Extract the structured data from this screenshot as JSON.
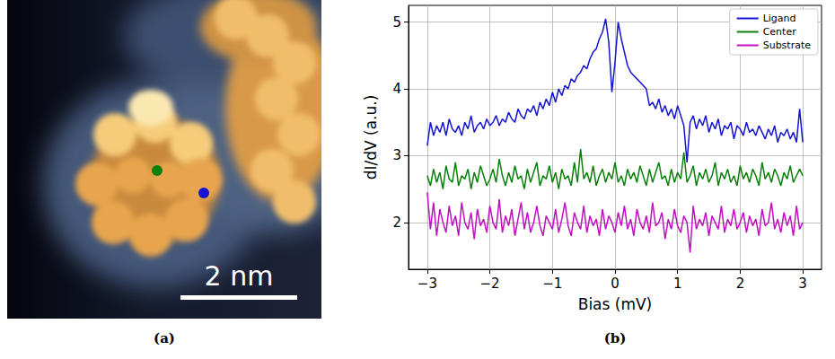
{
  "image_panel": {
    "caption": "(a)",
    "scale_bar": "2 nm"
  },
  "chart_data": {
    "type": "line",
    "caption": "(b)",
    "x_label": "Bias (mV)",
    "y_label": "dI/dV (a.u.)",
    "x": [
      -3,
      -2.95,
      -2.9,
      -2.85,
      -2.8,
      -2.75,
      -2.7,
      -2.65,
      -2.6,
      -2.55,
      -2.5,
      -2.45,
      -2.4,
      -2.35,
      -2.3,
      -2.25,
      -2.2,
      -2.15,
      -2.1,
      -2.05,
      -2,
      -1.95,
      -1.9,
      -1.85,
      -1.8,
      -1.75,
      -1.7,
      -1.65,
      -1.6,
      -1.55,
      -1.5,
      -1.45,
      -1.4,
      -1.35,
      -1.3,
      -1.25,
      -1.2,
      -1.15,
      -1.1,
      -1.05,
      -1,
      -0.95,
      -0.9,
      -0.85,
      -0.8,
      -0.75,
      -0.7,
      -0.65,
      -0.6,
      -0.55,
      -0.5,
      -0.45,
      -0.4,
      -0.35,
      -0.3,
      -0.25,
      -0.2,
      -0.15,
      -0.1,
      -0.05,
      0,
      0.05,
      0.1,
      0.15,
      0.2,
      0.25,
      0.3,
      0.35,
      0.4,
      0.45,
      0.5,
      0.55,
      0.6,
      0.65,
      0.7,
      0.75,
      0.8,
      0.85,
      0.9,
      0.95,
      1,
      1.05,
      1.1,
      1.15,
      1.2,
      1.25,
      1.3,
      1.35,
      1.4,
      1.45,
      1.5,
      1.55,
      1.6,
      1.65,
      1.7,
      1.75,
      1.8,
      1.85,
      1.9,
      1.95,
      2,
      2.05,
      2.1,
      2.15,
      2.2,
      2.25,
      2.3,
      2.35,
      2.4,
      2.45,
      2.5,
      2.55,
      2.6,
      2.65,
      2.7,
      2.75,
      2.8,
      2.85,
      2.9,
      2.95,
      3
    ],
    "series": [
      {
        "name": "Ligand",
        "color": "#1414d2",
        "values": [
          3.15,
          3.5,
          3.3,
          3.45,
          3.35,
          3.5,
          3.3,
          3.55,
          3.4,
          3.35,
          3.45,
          3.3,
          3.5,
          3.4,
          3.6,
          3.35,
          3.45,
          3.5,
          3.4,
          3.55,
          3.45,
          3.5,
          3.6,
          3.45,
          3.55,
          3.5,
          3.65,
          3.55,
          3.5,
          3.7,
          3.6,
          3.55,
          3.7,
          3.65,
          3.75,
          3.6,
          3.8,
          3.7,
          3.85,
          3.75,
          3.95,
          3.8,
          4.0,
          3.9,
          4.05,
          4.0,
          4.15,
          4.1,
          4.2,
          4.25,
          4.35,
          4.3,
          4.45,
          4.55,
          4.6,
          4.75,
          4.85,
          5.05,
          4.7,
          3.95,
          4.4,
          5.0,
          4.75,
          4.55,
          4.35,
          4.25,
          4.2,
          4.15,
          4.1,
          4.05,
          4.0,
          3.75,
          3.8,
          3.7,
          3.85,
          3.65,
          3.75,
          3.6,
          3.7,
          3.55,
          3.75,
          3.6,
          3.45,
          2.9,
          3.5,
          3.6,
          3.4,
          3.55,
          3.45,
          3.6,
          3.35,
          3.5,
          3.4,
          3.55,
          3.3,
          3.45,
          3.4,
          3.5,
          3.25,
          3.45,
          3.4,
          3.3,
          3.5,
          3.35,
          3.4,
          3.3,
          3.45,
          3.35,
          3.25,
          3.4,
          3.3,
          3.45,
          3.2,
          3.35,
          3.3,
          3.4,
          3.25,
          3.35,
          3.2,
          3.7,
          3.2
        ]
      },
      {
        "name": "Center",
        "color": "#0a800a",
        "values": [
          2.7,
          2.55,
          2.8,
          2.6,
          2.75,
          2.5,
          2.85,
          2.65,
          2.6,
          2.9,
          2.55,
          2.7,
          2.65,
          2.8,
          2.5,
          2.75,
          2.6,
          2.85,
          2.7,
          2.55,
          2.65,
          2.8,
          2.6,
          2.95,
          2.7,
          2.55,
          2.75,
          2.6,
          2.85,
          2.65,
          2.7,
          2.5,
          2.8,
          2.6,
          2.75,
          2.9,
          2.55,
          2.7,
          2.65,
          2.85,
          2.6,
          2.75,
          2.5,
          2.8,
          2.65,
          2.7,
          2.55,
          2.9,
          2.6,
          3.1,
          2.65,
          2.75,
          2.6,
          2.85,
          2.55,
          2.7,
          2.8,
          2.6,
          2.75,
          2.65,
          2.9,
          2.6,
          2.7,
          2.55,
          2.8,
          2.65,
          2.75,
          2.6,
          2.85,
          2.7,
          2.55,
          2.8,
          2.6,
          2.75,
          2.9,
          2.65,
          2.7,
          2.55,
          2.8,
          2.6,
          2.75,
          2.65,
          3.05,
          2.6,
          2.7,
          2.85,
          2.55,
          2.75,
          2.65,
          2.8,
          2.6,
          2.7,
          2.9,
          2.55,
          2.75,
          2.65,
          2.8,
          2.6,
          2.7,
          2.55,
          2.85,
          2.65,
          2.75,
          2.6,
          2.8,
          2.7,
          2.55,
          2.9,
          2.65,
          2.75,
          2.6,
          2.8,
          2.7,
          2.55,
          2.75,
          2.65,
          2.85,
          2.6,
          2.7,
          2.8,
          2.7
        ]
      },
      {
        "name": "Substrate",
        "color": "#c010c0",
        "values": [
          2.45,
          1.9,
          2.3,
          1.8,
          2.2,
          2.0,
          1.85,
          2.25,
          1.95,
          2.1,
          1.8,
          2.3,
          2.0,
          1.9,
          2.15,
          1.75,
          2.2,
          1.95,
          2.05,
          1.85,
          2.25,
          2.0,
          1.9,
          2.35,
          1.85,
          2.1,
          1.95,
          2.2,
          1.8,
          2.05,
          2.3,
          1.9,
          2.15,
          1.85,
          2.0,
          2.25,
          1.95,
          1.8,
          2.1,
          2.0,
          1.9,
          2.2,
          1.85,
          2.05,
          2.3,
          1.95,
          1.8,
          2.15,
          2.0,
          1.9,
          2.25,
          1.85,
          2.1,
          1.95,
          2.05,
          1.8,
          2.2,
          1.9,
          2.1,
          2.0,
          1.85,
          2.15,
          1.95,
          2.25,
          1.9,
          2.05,
          1.8,
          2.2,
          2.0,
          1.9,
          2.1,
          1.85,
          2.3,
          1.95,
          2.0,
          2.15,
          1.75,
          2.05,
          1.9,
          2.2,
          1.95,
          1.85,
          2.1,
          2.0,
          1.55,
          2.25,
          1.9,
          2.05,
          1.95,
          2.15,
          1.8,
          2.1,
          2.0,
          1.9,
          2.25,
          1.85,
          2.05,
          1.95,
          2.2,
          1.9,
          2.0,
          2.15,
          1.85,
          2.1,
          1.95,
          2.05,
          1.8,
          2.2,
          1.95,
          2.0,
          2.3,
          1.9,
          2.05,
          1.85,
          2.15,
          1.95,
          2.1,
          1.8,
          2.25,
          1.9,
          2.0
        ]
      }
    ],
    "xlim": [
      -3.3,
      3.3
    ],
    "xticks": [
      {
        "value": -3,
        "label": "−3"
      },
      {
        "value": -2,
        "label": "−2"
      },
      {
        "value": -1,
        "label": "−1"
      },
      0,
      1,
      2,
      3
    ],
    "ylim": [
      1.3,
      5.25
    ],
    "yticks": [
      2,
      3,
      4,
      5
    ],
    "grid": true,
    "legend": "upper right"
  }
}
